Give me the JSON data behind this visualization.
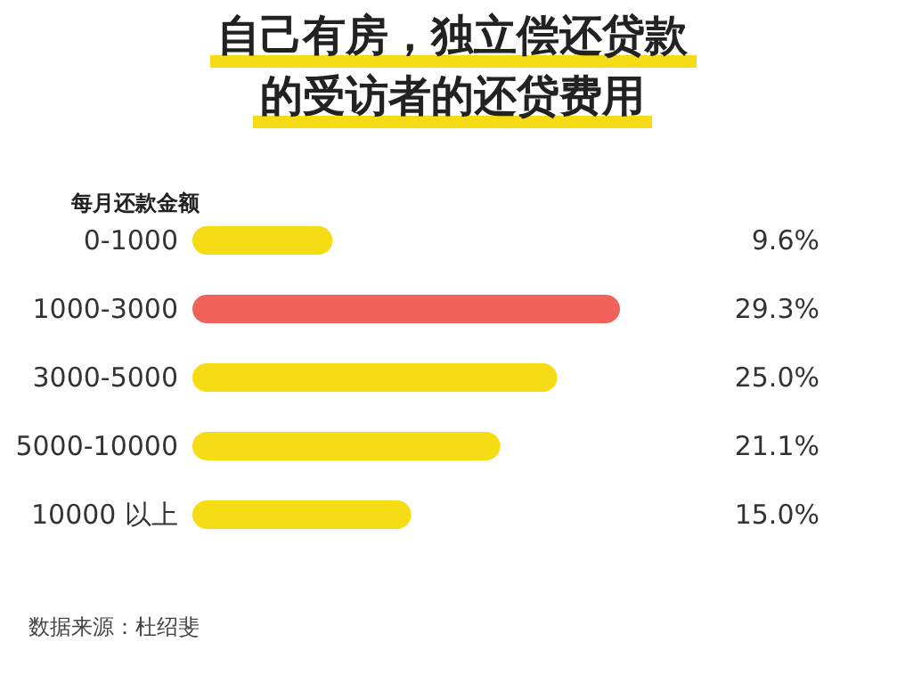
{
  "chart_data": {
    "type": "bar",
    "orientation": "horizontal",
    "title": "自己有房，独立偿还贷款的受访者的还贷费用",
    "ylabel": "每月还款金额",
    "categories": [
      "0-1000",
      "1000-3000",
      "3000-5000",
      "5000-10000",
      "10000 以上"
    ],
    "values": [
      9.6,
      29.3,
      25.0,
      21.1,
      15.0
    ],
    "value_labels": [
      "9.6%",
      "29.3%",
      "25.0%",
      "21.1%",
      "15.0%"
    ],
    "colors": [
      "#f5dc14",
      "#f0625a",
      "#f5dc14",
      "#f5dc14",
      "#f5dc14"
    ],
    "annotations": [
      "数据来源：杜绍斐"
    ]
  }
}
